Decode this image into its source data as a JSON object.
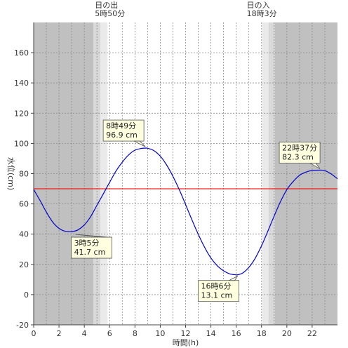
{
  "chart_data": {
    "type": "line",
    "xlabel": "時間(h)",
    "ylabel": "水位(cm)",
    "xlim": [
      0,
      24
    ],
    "ylim": [
      -20,
      180
    ],
    "x_ticks": [
      0,
      2,
      4,
      6,
      8,
      10,
      12,
      14,
      16,
      18,
      20,
      22
    ],
    "y_ticks": [
      -20,
      0,
      20,
      40,
      60,
      80,
      100,
      120,
      140,
      160
    ],
    "grid": true,
    "reference_line": {
      "y": 70,
      "color": "#ee0000"
    },
    "line_color": "#0000cc",
    "series": [
      {
        "x": [
          0,
          0.5,
          1,
          1.5,
          2,
          2.5,
          3,
          3.08,
          3.5,
          4,
          4.5,
          5,
          5.5,
          6,
          6.5,
          7,
          7.5,
          8,
          8.5,
          8.82,
          9,
          9.5,
          10,
          10.5,
          11,
          11.5,
          12,
          12.5,
          13,
          13.5,
          14,
          14.5,
          15,
          15.5,
          16,
          16.1,
          16.5,
          17,
          17.5,
          18,
          18.5,
          19,
          19.5,
          20,
          20.5,
          21,
          21.5,
          22,
          22.62,
          23,
          23.5,
          24
        ],
        "values": [
          69.5,
          62.3,
          54.6,
          48.0,
          43.8,
          41.9,
          41.7,
          41.7,
          42.8,
          46.1,
          51.6,
          59.1,
          66.6,
          74.3,
          81.7,
          87.6,
          92.4,
          95.5,
          96.7,
          96.9,
          96.8,
          95.2,
          91.6,
          85.8,
          78.2,
          69.4,
          59.6,
          49.5,
          40.0,
          31.3,
          24.2,
          19.1,
          15.8,
          13.7,
          13.1,
          13.1,
          14.2,
          18.0,
          24.0,
          32.3,
          42.0,
          52.0,
          61.5,
          69.4,
          74.8,
          78.9,
          81.0,
          82.1,
          82.3,
          82.0,
          79.8,
          76.6
        ]
      }
    ],
    "daylight": {
      "sunrise": 5.833,
      "sunset": 18.05,
      "sunrise_label": [
        "日の出",
        "5時50分"
      ],
      "sunset_label": [
        "日の入",
        "18時3分"
      ],
      "night_color": "#c0c0c0",
      "twilight_color": "#d8d8d8",
      "civil_twilight_color": "#eaeaea"
    },
    "annotations": [
      {
        "x": 3.08,
        "y": 41.7,
        "time": "3時5分",
        "value": "41.7 cm"
      },
      {
        "x": 8.82,
        "y": 96.9,
        "time": "8時49分",
        "value": "96.9 cm"
      },
      {
        "x": 16.1,
        "y": 13.1,
        "time": "16時6分",
        "value": "13.1 cm"
      },
      {
        "x": 22.62,
        "y": 82.3,
        "time": "22時37分",
        "value": "82.3 cm"
      }
    ]
  }
}
